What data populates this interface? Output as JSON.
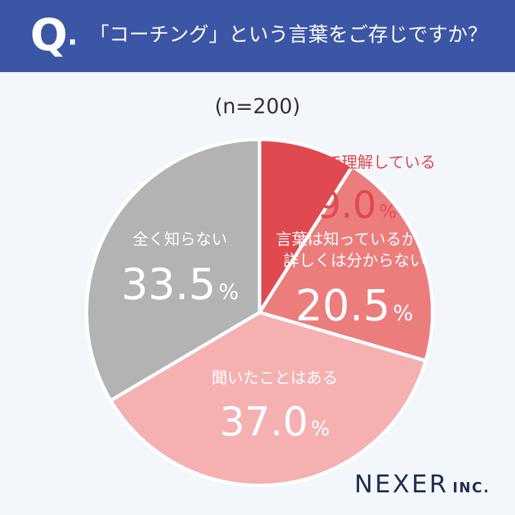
{
  "header": {
    "q_mark": "Q",
    "q_dot": ".",
    "question": "「コーチング」という言葉をご存じですか？"
  },
  "sample_size": "(n=200)",
  "chart_data": {
    "type": "pie",
    "start": "12 o'clock, clockwise",
    "slices": [
      {
        "label_lines": [
          "内容まで理解している"
        ],
        "value": 9.0,
        "display": "9.0",
        "unit": "%",
        "color": "#e0494f",
        "label_color": "#e0494f"
      },
      {
        "label_lines": [
          "言葉は知っているが、",
          "詳しくは分からない"
        ],
        "value": 20.5,
        "display": "20.5",
        "unit": "%",
        "color": "#ec7d7d",
        "label_color": "#ffffff"
      },
      {
        "label_lines": [
          "聞いたことはある"
        ],
        "value": 37.0,
        "display": "37.0",
        "unit": "%",
        "color": "#f5b1b2",
        "label_color": "#ffffff"
      },
      {
        "label_lines": [
          "全く知らない"
        ],
        "value": 33.5,
        "display": "33.5",
        "unit": "%",
        "color": "#b3b3b3",
        "label_color": "#ffffff"
      }
    ]
  },
  "logo": {
    "main": "NEXER",
    "sub": "INC."
  }
}
